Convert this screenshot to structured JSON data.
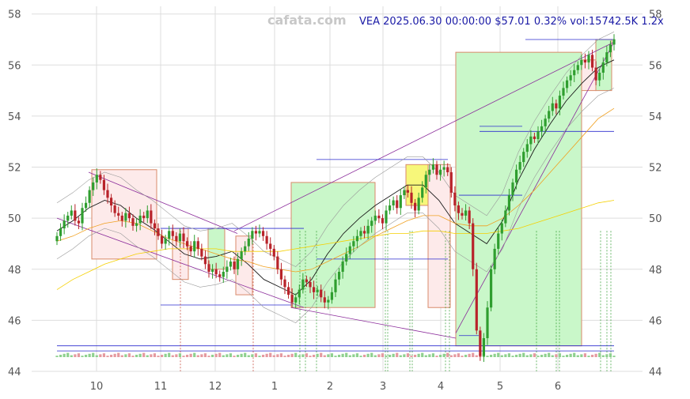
{
  "header": {
    "watermark": "cafata.com",
    "info": "VEA 2025.06.30 00:00:00 $57.01 0.32% vol:15742.5K 1.2x"
  },
  "chart_data": {
    "type": "candlestick",
    "x_tick_labels": [
      "10",
      "11",
      "12",
      "1",
      "2",
      "3",
      "4",
      "5",
      "6"
    ],
    "y_ticks": [
      44,
      46,
      48,
      50,
      52,
      54,
      56,
      58
    ],
    "ylim": [
      44,
      58.3
    ],
    "grid": true,
    "series_close": [
      49.3,
      49.6,
      49.9,
      50.1,
      50.3,
      49.9,
      49.8,
      50.4,
      50.6,
      51.1,
      51.4,
      51.7,
      51.5,
      51.1,
      50.8,
      50.5,
      50.2,
      50.1,
      49.9,
      50.2,
      50.0,
      49.7,
      49.8,
      50.1,
      50.0,
      50.3,
      49.8,
      49.6,
      49.3,
      49.0,
      49.2,
      49.5,
      49.3,
      49.1,
      49.4,
      49.1,
      48.9,
      48.7,
      49.1,
      48.8,
      48.5,
      48.2,
      47.9,
      48.0,
      47.8,
      47.7,
      47.9,
      48.1,
      48.3,
      48.0,
      48.4,
      48.7,
      48.9,
      49.2,
      49.5,
      49.4,
      49.5,
      49.3,
      49.0,
      48.8,
      48.5,
      48.0,
      47.6,
      47.3,
      47.0,
      46.7,
      46.9,
      47.2,
      47.6,
      47.5,
      47.3,
      47.1,
      47.2,
      46.9,
      46.7,
      46.8,
      47.1,
      47.6,
      47.9,
      48.3,
      48.6,
      48.9,
      49.1,
      49.3,
      49.5,
      49.4,
      49.7,
      49.9,
      50.1,
      50.0,
      49.8,
      50.3,
      50.5,
      50.7,
      50.4,
      50.9,
      51.1,
      51.0,
      50.6,
      50.3,
      50.8,
      51.2,
      51.7,
      51.9,
      52.1,
      51.7,
      51.9,
      52.0,
      51.8,
      51.0,
      50.5,
      50.2,
      50.1,
      50.3,
      49.8,
      48.0,
      45.6,
      44.6,
      45.3,
      46.5,
      48.0,
      48.8,
      49.4,
      49.8,
      50.3,
      50.9,
      51.4,
      51.9,
      52.2,
      52.6,
      52.9,
      53.2,
      53.1,
      53.4,
      53.6,
      53.9,
      54.2,
      54.5,
      54.3,
      54.8,
      55.1,
      55.4,
      55.6,
      55.8,
      56.0,
      56.2,
      56.1,
      56.4,
      55.9,
      55.4,
      55.7,
      56.1,
      56.5,
      56.8,
      57.01
    ],
    "sma_short": [
      49.5,
      49.9,
      50.4,
      50.7,
      50.5,
      50.0,
      49.6,
      49.1,
      48.6,
      48.4,
      48.5,
      48.7,
      48.2,
      47.6,
      47.3,
      47.0,
      47.6,
      48.6,
      49.4,
      50.0,
      50.5,
      50.9,
      51.3,
      51.3,
      50.7,
      49.8,
      49.4,
      49.0,
      49.9,
      51.5,
      52.7,
      53.7,
      54.6,
      55.3,
      55.9,
      56.2
    ],
    "sma_mid": [
      49.1,
      49.3,
      49.6,
      49.8,
      49.9,
      49.8,
      49.5,
      49.2,
      49.0,
      48.8,
      48.6,
      48.4,
      48.3,
      48.1,
      48.0,
      47.9,
      48.0,
      48.3,
      48.6,
      48.9,
      49.3,
      49.6,
      49.9,
      50.1,
      50.1,
      49.8,
      49.7,
      49.7,
      50.0,
      50.5,
      51.1,
      51.8,
      52.5,
      53.2,
      53.9,
      54.3
    ],
    "sma_long": [
      47.2,
      47.6,
      47.9,
      48.2,
      48.4,
      48.6,
      48.7,
      48.8,
      48.8,
      48.8,
      48.8,
      48.7,
      48.7,
      48.7,
      48.7,
      48.8,
      48.9,
      49.0,
      49.1,
      49.2,
      49.3,
      49.4,
      49.4,
      49.5,
      49.5,
      49.4,
      49.4,
      49.4,
      49.5,
      49.6,
      49.8,
      50.0,
      50.2,
      50.4,
      50.6,
      50.7
    ]
  }
}
